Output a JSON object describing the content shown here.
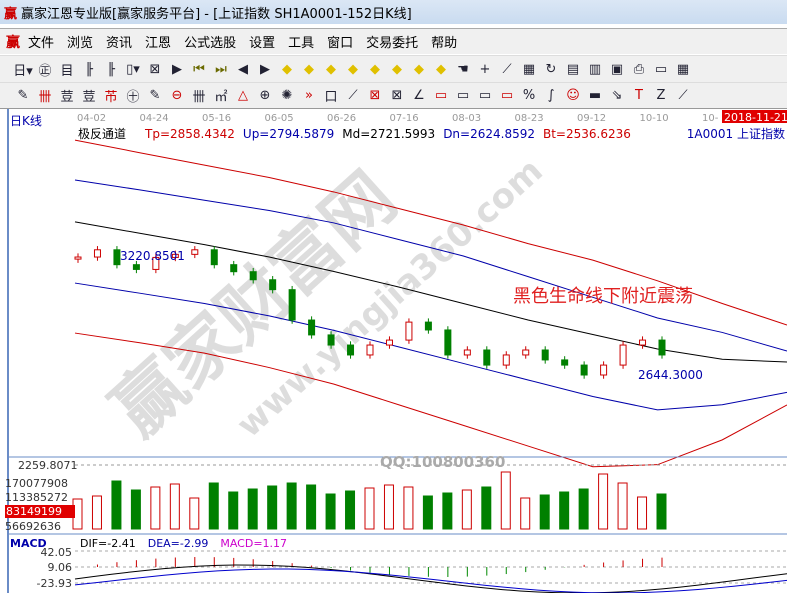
{
  "window": {
    "title": "赢家江恩专业版[赢家服务平台] - [上证指数  SH1A0001-152日K线]",
    "logo": "赢"
  },
  "menu": [
    "文件",
    "浏览",
    "资讯",
    "江恩",
    "公式选股",
    "设置",
    "工具",
    "窗口",
    "交易委托",
    "帮助"
  ],
  "toolbar1": [
    {
      "icon": "period-day",
      "label": "日▾"
    },
    {
      "icon": "chart-icon",
      "label": "㊣"
    },
    {
      "icon": "list-icon",
      "label": "目"
    },
    {
      "icon": "bars3-icon",
      "label": "╟"
    },
    {
      "icon": "bars9-icon",
      "label": "╟"
    },
    {
      "icon": "candle-icon",
      "label": "▯▾"
    },
    {
      "icon": "reverse-icon",
      "label": "⊠"
    },
    {
      "icon": "flag-icon",
      "label": "▶"
    },
    {
      "icon": "first-icon",
      "label": "⏮"
    },
    {
      "icon": "last-icon",
      "label": "⏭"
    },
    {
      "icon": "left-icon",
      "label": "◀"
    },
    {
      "icon": "right-icon",
      "label": "▶"
    },
    {
      "icon": "diamond-left",
      "label": "◆"
    },
    {
      "icon": "diamond-right",
      "label": "◆"
    },
    {
      "icon": "diamond-h",
      "label": "◆"
    },
    {
      "icon": "diamond-x",
      "label": "◆"
    },
    {
      "icon": "diamond-star",
      "label": "◆"
    },
    {
      "icon": "diamond-v",
      "label": "◆"
    },
    {
      "icon": "diamond-a",
      "label": "◆"
    },
    {
      "icon": "diamond-b",
      "label": "◆"
    },
    {
      "icon": "hand-icon",
      "label": "☚"
    },
    {
      "icon": "cross-icon",
      "label": "+"
    },
    {
      "icon": "line-icon",
      "label": "⟋"
    },
    {
      "icon": "grid-icon",
      "label": "▦"
    },
    {
      "icon": "refresh-icon",
      "label": "↻"
    },
    {
      "icon": "calendar-icon",
      "label": "▤"
    },
    {
      "icon": "calc-icon",
      "label": "▥"
    },
    {
      "icon": "save-icon",
      "label": "▣"
    },
    {
      "icon": "print-icon",
      "label": "⎙"
    },
    {
      "icon": "window-icon",
      "label": "▭"
    },
    {
      "icon": "tile-icon",
      "label": "▦"
    }
  ],
  "toolbar2": [
    {
      "icon": "pen-icon",
      "label": "✎"
    },
    {
      "icon": "hash-icon",
      "label": "卌"
    },
    {
      "icon": "gold-icon",
      "label": "荳"
    },
    {
      "icon": "gold2-icon",
      "label": "荳"
    },
    {
      "icon": "fork-icon",
      "label": "芇"
    },
    {
      "icon": "spiral-icon",
      "label": "㊉"
    },
    {
      "icon": "ruler-icon",
      "label": "✎"
    },
    {
      "icon": "circle-icon",
      "label": "⊖"
    },
    {
      "icon": "hash2-icon",
      "label": "卌"
    },
    {
      "icon": "n2-icon",
      "label": "㎡"
    },
    {
      "icon": "triangle-icon",
      "label": "△"
    },
    {
      "icon": "target-icon",
      "label": "⊕"
    },
    {
      "icon": "sun-icon",
      "label": "✺"
    },
    {
      "icon": "more-icon",
      "label": "»"
    },
    {
      "icon": "box-icon",
      "label": "口"
    },
    {
      "icon": "fan-icon",
      "label": "⟋"
    },
    {
      "icon": "box2-icon",
      "label": "⊠"
    },
    {
      "icon": "box3-icon",
      "label": "⊠"
    },
    {
      "icon": "angle-icon",
      "label": "∠"
    },
    {
      "icon": "rect-icon",
      "label": "▭"
    },
    {
      "icon": "rect2-icon",
      "label": "▭"
    },
    {
      "icon": "rect3-icon",
      "label": "▭"
    },
    {
      "icon": "rect4-icon",
      "label": "▭"
    },
    {
      "icon": "pct-icon",
      "label": "%"
    },
    {
      "icon": "curve-icon",
      "label": "∫"
    },
    {
      "icon": "smile-icon",
      "label": "☺"
    },
    {
      "icon": "bar-icon",
      "label": "▬"
    },
    {
      "icon": "arrow-icon",
      "label": "⇘"
    },
    {
      "icon": "t-icon",
      "label": "T"
    },
    {
      "icon": "z-icon",
      "label": "Z"
    },
    {
      "icon": "slash-icon",
      "label": "⟋"
    }
  ],
  "chart": {
    "period_label": "日K线",
    "indicator_name": "极反通道",
    "indicator_values": [
      {
        "text": "Tp=2858.4342",
        "color": "#cc0000"
      },
      {
        "text": "Up=2794.5879",
        "color": "#0000aa"
      },
      {
        "text": "Md=2721.5993",
        "color": "#000000"
      },
      {
        "text": "Dn=2624.8592",
        "color": "#0000aa"
      },
      {
        "text": "Bt=2536.6236",
        "color": "#cc0000"
      }
    ],
    "symbol": "1A0001  上证指数",
    "dates": [
      "04-02",
      "04-24",
      "05-16",
      "06-05",
      "06-26",
      "07-16",
      "08-03",
      "08-23",
      "09-12",
      "10-10",
      "10-"
    ],
    "current_date": "2018-11-21",
    "high_label": "3220.8501",
    "low_label": "2644.3000",
    "price_low_axis": "2259.8071",
    "annotation": "黑色生命线下附近震荡",
    "volume_labels": [
      "170077908",
      "113385272",
      "56692636"
    ],
    "volume_current": "83149199",
    "macd": {
      "name": "MACD",
      "dif": "DIF=-2.41",
      "dea": "DEA=-2.99",
      "macd": "MACD=1.17",
      "axis": [
        "42.05",
        "9.06",
        "-23.93"
      ]
    },
    "watermark": {
      "logo": "赢家财富网",
      "url": "www.yingjia360.com",
      "qq": "QQ:100800360"
    }
  },
  "chart_data": {
    "type": "candlestick",
    "closes": [
      3215,
      3250,
      3178,
      3155,
      3213,
      3228,
      3250,
      3178,
      3144,
      3105,
      3057,
      2910,
      2838,
      2789,
      2741,
      2789,
      2813,
      2900,
      2862,
      2741,
      2765,
      2692,
      2741,
      2765,
      2717,
      2692,
      2644,
      2692,
      2789,
      2813,
      2741
    ],
    "bands": {
      "Tp": [
        3781,
        3720,
        3660,
        3600,
        3530,
        3450,
        3370,
        3280,
        3200,
        3100,
        2990,
        2886
      ],
      "Up": [
        3588,
        3540,
        3490,
        3440,
        3380,
        3300,
        3220,
        3120,
        3020,
        2920,
        2850,
        2760
      ],
      "Md": [
        3385,
        3330,
        3275,
        3215,
        3145,
        3070,
        2990,
        2910,
        2840,
        2770,
        2720,
        2707
      ],
      "Dn": [
        3089,
        3040,
        2990,
        2930,
        2860,
        2780,
        2700,
        2620,
        2540,
        2475,
        2500,
        2560
      ],
      "Bt": [
        2847,
        2800,
        2750,
        2680,
        2600,
        2500,
        2400,
        2300,
        2200,
        2210,
        2330,
        2499
      ]
    },
    "colors": {
      "up": "#cc0000",
      "down": "#008000",
      "Tp": "#cc0000",
      "Up": "#0000aa",
      "Md": "#000000",
      "Dn": "#0000aa",
      "Bt": "#cc0000"
    }
  }
}
